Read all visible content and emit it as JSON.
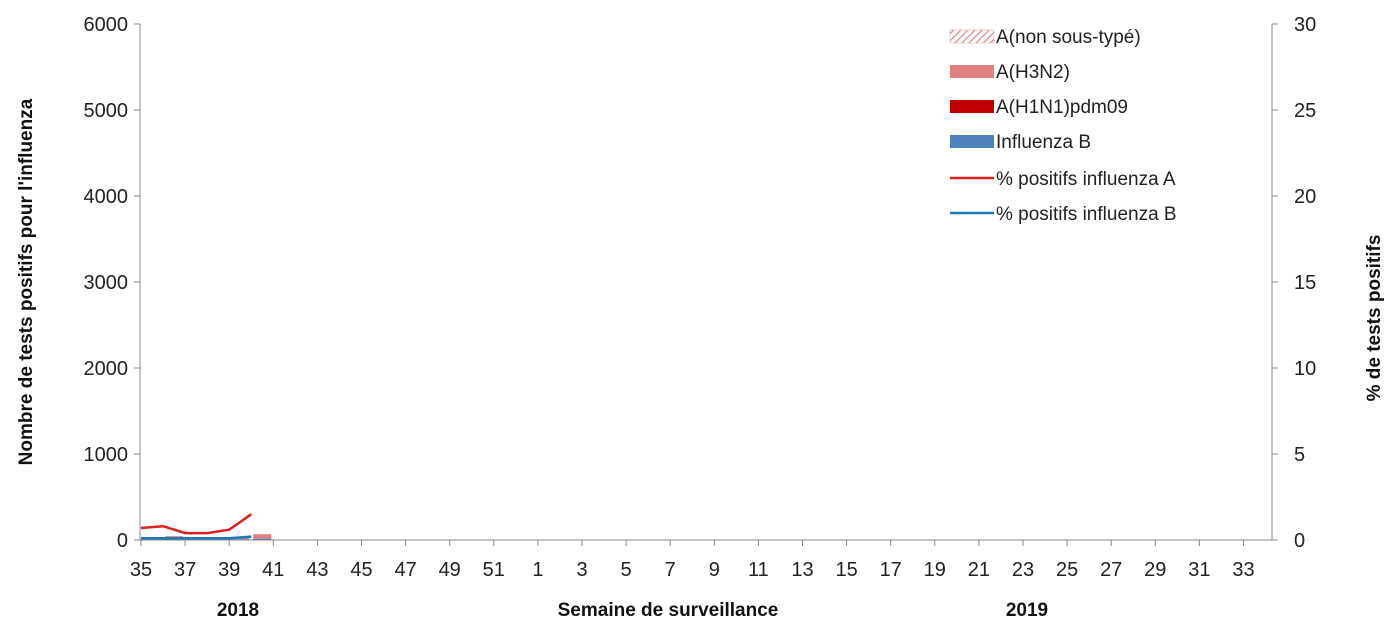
{
  "chart_data": {
    "type": "bar",
    "title": "",
    "xlabel": "Semaine de surveillance",
    "ylabel_left": "Nombre de tests positifs pour l'influenza",
    "ylabel_right": "% de tests positifs",
    "year_labels": [
      "2018",
      "2019"
    ],
    "ylim_left": [
      0,
      6000
    ],
    "ylim_right": [
      0,
      30
    ],
    "yticks_left": [
      "0",
      "1000",
      "2000",
      "3000",
      "4000",
      "5000",
      "6000"
    ],
    "yticks_right": [
      "0",
      "5",
      "10",
      "15",
      "20",
      "25",
      "30"
    ],
    "x_tick_labels": [
      "35",
      "37",
      "39",
      "41",
      "43",
      "45",
      "47",
      "49",
      "51",
      "1",
      "3",
      "5",
      "7",
      "9",
      "11",
      "13",
      "15",
      "17",
      "19",
      "21",
      "23",
      "25",
      "27",
      "29",
      "31",
      "33"
    ],
    "categories": [
      "35",
      "36",
      "37",
      "38",
      "39",
      "40"
    ],
    "stack_order": [
      "Influenza B",
      "A(H1N1)pdm09",
      "A(H3N2)",
      "A(non sous-typé)"
    ],
    "series": [
      {
        "name": "A(non sous-typé)",
        "type": "bar",
        "color": "#e8a8a8",
        "pattern": "hatch",
        "values": [
          0,
          0,
          0,
          0,
          0,
          0
        ]
      },
      {
        "name": "A(H3N2)",
        "type": "bar",
        "color": "#e08080",
        "values": [
          10,
          40,
          15,
          15,
          30,
          55
        ]
      },
      {
        "name": "A(H1N1)pdm09",
        "type": "bar",
        "color": "#c00000",
        "values": [
          0,
          0,
          0,
          0,
          0,
          0
        ]
      },
      {
        "name": "Influenza B",
        "type": "bar",
        "color": "#4f81bd",
        "values": [
          5,
          5,
          5,
          5,
          8,
          12
        ]
      },
      {
        "name": "% positifs influenza A",
        "type": "line",
        "axis": "right",
        "color": "#e02020",
        "values": [
          0.7,
          0.8,
          0.4,
          0.4,
          0.6,
          1.5
        ]
      },
      {
        "name": "% positifs influenza B",
        "type": "line",
        "axis": "right",
        "color": "#1f78b4",
        "values": [
          0.1,
          0.1,
          0.1,
          0.1,
          0.1,
          0.2
        ]
      }
    ],
    "legend": [
      "A(non sous-typé)",
      "A(H3N2)",
      "A(H1N1)pdm09",
      "Influenza B",
      "% positifs influenza A",
      "% positifs influenza B"
    ],
    "legend_position": "top-right",
    "grid": false
  }
}
